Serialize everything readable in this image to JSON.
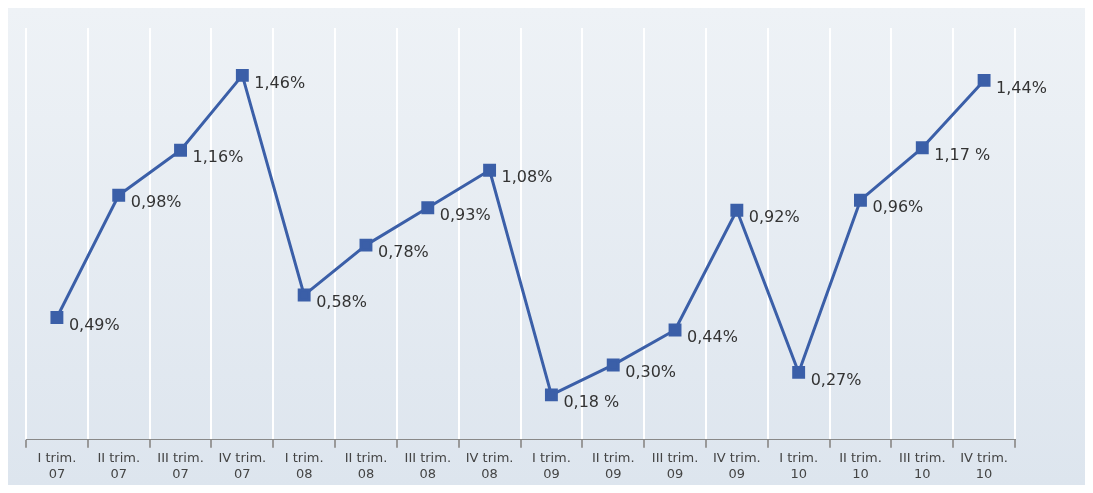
{
  "chart_data": {
    "type": "line",
    "categories": [
      "I trim. 07",
      "II trim. 07",
      "III trim. 07",
      "IV trim. 07",
      "I trim. 08",
      "II trim. 08",
      "III trim. 08",
      "IV trim. 08",
      "I trim. 09",
      "II trim. 09",
      "III trim. 09",
      "IV trim. 09",
      "I trim. 10",
      "II trim. 10",
      "III trim. 10",
      "IV trim. 10"
    ],
    "series": [
      {
        "color": "#3b5fa8",
        "values": [
          0.49,
          0.98,
          1.16,
          1.46,
          0.58,
          0.78,
          0.93,
          1.08,
          0.18,
          0.3,
          0.44,
          0.92,
          0.27,
          0.96,
          1.17,
          1.44
        ],
        "value_labels": [
          "0,49%",
          "0,98%",
          "1,16%",
          "1,46%",
          "0,58%",
          "0,78%",
          "0,93%",
          "1,08%",
          "0,18 %",
          "0,30%",
          "0,44%",
          "0,92%",
          "0,27%",
          "0,96%",
          "1,17 %",
          "1,44%"
        ]
      }
    ],
    "ylim": [
      0,
      1.65
    ],
    "grid": "x",
    "legend": false,
    "marker": "square",
    "line_style": "solid"
  }
}
